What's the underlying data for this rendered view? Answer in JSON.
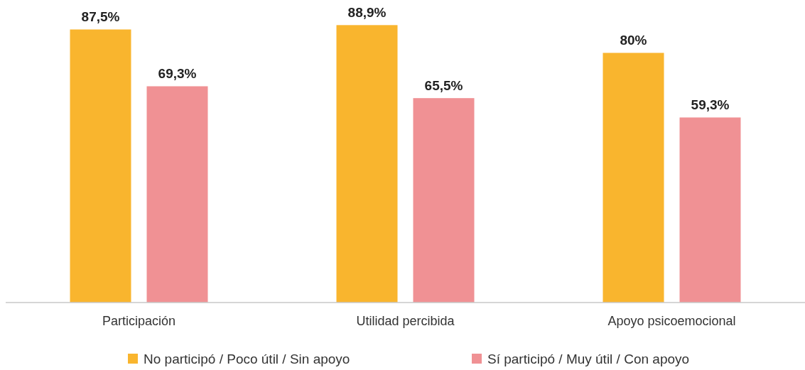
{
  "chart_data": {
    "type": "bar",
    "categories": [
      "Participación",
      "Utilidad percibida",
      "Apoyo psicoemocional"
    ],
    "series": [
      {
        "name": "No participó / Poco útil / Sin apoyo",
        "color": "#f9b52e",
        "values": [
          87.5,
          88.9,
          80
        ],
        "value_labels": [
          "87,5%",
          "88,9%",
          "80%"
        ]
      },
      {
        "name": "Sí participó / Muy útil / Con apoyo",
        "color": "#f09194",
        "values": [
          69.3,
          65.5,
          59.3
        ],
        "value_labels": [
          "69,3%",
          "65,5%",
          "59,3%"
        ]
      }
    ],
    "legend": "bottom",
    "grid": false
  }
}
